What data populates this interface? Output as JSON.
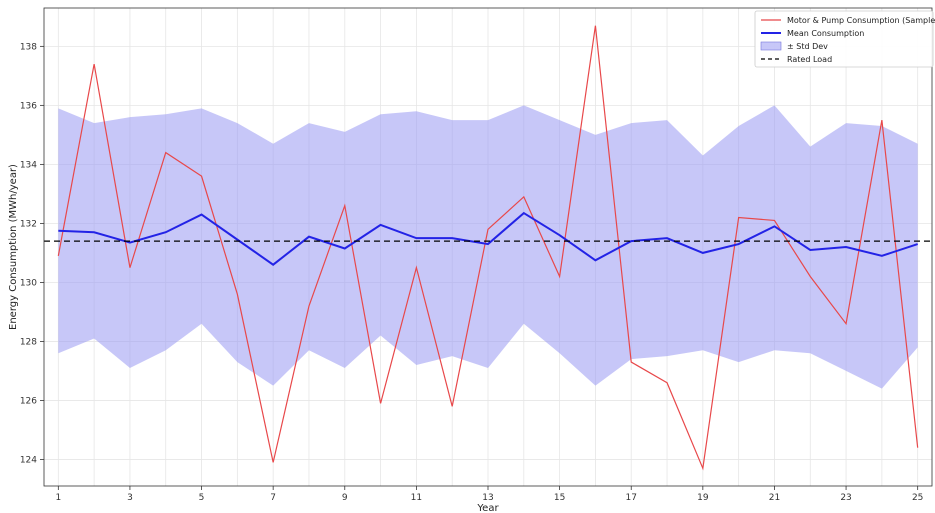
{
  "chart_data": {
    "type": "line",
    "xlabel": "Year",
    "ylabel": "Energy Consumption (MWh/year)",
    "x": [
      1,
      2,
      3,
      4,
      5,
      6,
      7,
      8,
      9,
      10,
      11,
      12,
      13,
      14,
      15,
      16,
      17,
      18,
      19,
      20,
      21,
      22,
      23,
      24,
      25
    ],
    "xlim": [
      0.6,
      25.4
    ],
    "ylim": [
      123.1,
      139.3
    ],
    "x_ticks": [
      1,
      3,
      5,
      7,
      9,
      11,
      13,
      15,
      17,
      19,
      21,
      23,
      25
    ],
    "y_ticks": [
      124,
      126,
      128,
      130,
      132,
      134,
      136,
      138
    ],
    "grid": true,
    "legend_position": "top-right",
    "series": [
      {
        "name": "Motor & Pump Consumption (Sample)",
        "kind": "line",
        "color": "#e8484a",
        "values": [
          130.9,
          137.4,
          130.5,
          134.4,
          133.6,
          129.6,
          123.9,
          129.2,
          132.6,
          125.9,
          130.5,
          125.8,
          131.8,
          132.9,
          130.2,
          138.7,
          127.3,
          126.6,
          123.7,
          132.2,
          132.1,
          130.2,
          128.6,
          135.5,
          124.4
        ]
      },
      {
        "name": "Mean Consumption",
        "kind": "line",
        "color": "#2323e6",
        "values": [
          131.75,
          131.7,
          131.35,
          131.7,
          132.3,
          131.45,
          130.6,
          131.55,
          131.15,
          131.95,
          131.5,
          131.5,
          131.3,
          132.35,
          131.6,
          130.75,
          131.4,
          131.5,
          131.0,
          131.3,
          131.9,
          131.1,
          131.2,
          130.9,
          131.3
        ]
      },
      {
        "name": "± Std Dev",
        "kind": "band",
        "color": "#9999f2",
        "upper": [
          135.9,
          135.4,
          135.6,
          135.7,
          135.9,
          135.4,
          134.7,
          135.4,
          135.1,
          135.7,
          135.8,
          135.5,
          135.5,
          136.0,
          135.5,
          135.0,
          135.4,
          135.5,
          134.3,
          135.3,
          136.0,
          134.6,
          135.4,
          135.3,
          134.7
        ],
        "lower": [
          127.6,
          128.1,
          127.1,
          127.7,
          128.6,
          127.3,
          126.5,
          127.7,
          127.1,
          128.2,
          127.2,
          127.5,
          127.1,
          128.6,
          127.6,
          126.5,
          127.4,
          127.5,
          127.7,
          127.3,
          127.7,
          127.6,
          127.0,
          126.4,
          127.8
        ]
      },
      {
        "name": "Rated Load",
        "kind": "hline",
        "color": "#000000",
        "value": 131.4
      }
    ]
  }
}
